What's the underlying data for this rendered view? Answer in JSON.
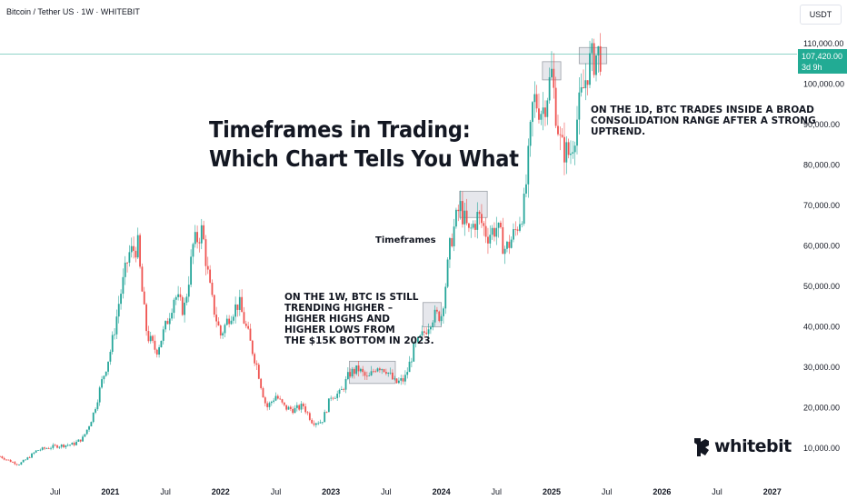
{
  "header": {
    "symbol": "Bitcoin / Tether US · 1W · WHITEBIT",
    "currency": "USDT"
  },
  "headline": {
    "line1": "Timeframes in Trading:",
    "line2": "Which Chart Tells You What"
  },
  "annotations": {
    "weekly": "ON THE 1W, BTC IS STILL\nTRENDING HIGHER –\nHIGHER HIGHS AND\nHIGHER LOWS FROM\nTHE $15K BOTTOM IN 2023.",
    "daily": "ON THE 1D, BTC TRADES INSIDE A BROAD\nCONSOLIDATION RANGE AFTER A STRONG\nUPTREND.",
    "timeframes_label": "Timeframes"
  },
  "price_tag": {
    "price": "107,420.00",
    "countdown": "3d 9h"
  },
  "logo": {
    "name": "whitebit",
    "icon": "whitebit-logo-icon"
  },
  "colors": {
    "up": "#26a69a",
    "down": "#ef5350",
    "price_line": "#22ab94",
    "box_fill": "#d1d4dc",
    "box_stroke": "#9ba0a8",
    "text": "#131722"
  },
  "chart_data": {
    "type": "candlestick",
    "y_scale": "linear",
    "ylim": [
      3500,
      114000
    ],
    "ytick_labels": [
      "110,000.00",
      "100,000.00",
      "90,000.00",
      "80,000.00",
      "70,000.00",
      "60,000.00",
      "50,000.00",
      "40,000.00",
      "30,000.00",
      "20,000.00",
      "10,000.00"
    ],
    "ytick_values": [
      110000,
      100000,
      90000,
      80000,
      70000,
      60000,
      50000,
      40000,
      30000,
      20000,
      10000
    ],
    "xtick_labels": [
      {
        "label": "Jul",
        "date": "2020-07",
        "bold": false
      },
      {
        "label": "2021",
        "date": "2021-01",
        "bold": true
      },
      {
        "label": "Jul",
        "date": "2021-07",
        "bold": false
      },
      {
        "label": "2022",
        "date": "2022-01",
        "bold": true
      },
      {
        "label": "Jul",
        "date": "2022-07",
        "bold": false
      },
      {
        "label": "2023",
        "date": "2023-01",
        "bold": true
      },
      {
        "label": "Jul",
        "date": "2023-07",
        "bold": false
      },
      {
        "label": "2024",
        "date": "2024-01",
        "bold": true
      },
      {
        "label": "Jul",
        "date": "2024-07",
        "bold": false
      },
      {
        "label": "2025",
        "date": "2025-01",
        "bold": true
      },
      {
        "label": "Jul",
        "date": "2025-07",
        "bold": false
      },
      {
        "label": "2026",
        "date": "2026-01",
        "bold": true
      },
      {
        "label": "Jul",
        "date": "2026-07",
        "bold": false
      },
      {
        "label": "2027",
        "date": "2027-01",
        "bold": true
      }
    ],
    "x_start": "2020-01",
    "x_end": "2027-03",
    "last_price": 107420,
    "price_path": [
      [
        "2020-01",
        8000
      ],
      [
        "2020-03",
        6000
      ],
      [
        "2020-05",
        9500
      ],
      [
        "2020-07",
        10500
      ],
      [
        "2020-09",
        11000
      ],
      [
        "2020-10",
        12500
      ],
      [
        "2020-11",
        17500
      ],
      [
        "2020-12",
        26000
      ],
      [
        "2021-01",
        34000
      ],
      [
        "2021-02",
        47000
      ],
      [
        "2021-03",
        58000
      ],
      [
        "2021-04",
        60000
      ],
      [
        "2021-05",
        38000
      ],
      [
        "2021-06",
        34000
      ],
      [
        "2021-07",
        40000
      ],
      [
        "2021-08",
        48000
      ],
      [
        "2021-09",
        44000
      ],
      [
        "2021-10",
        60000
      ],
      [
        "2021-11",
        64000
      ],
      [
        "2021-12",
        47000
      ],
      [
        "2022-01",
        38000
      ],
      [
        "2022-02",
        43000
      ],
      [
        "2022-03",
        46000
      ],
      [
        "2022-04",
        38000
      ],
      [
        "2022-05",
        30000
      ],
      [
        "2022-06",
        20000
      ],
      [
        "2022-07",
        23000
      ],
      [
        "2022-08",
        20000
      ],
      [
        "2022-09",
        19500
      ],
      [
        "2022-10",
        20500
      ],
      [
        "2022-11",
        16500
      ],
      [
        "2022-12",
        16600
      ],
      [
        "2023-01",
        23000
      ],
      [
        "2023-02",
        23500
      ],
      [
        "2023-03",
        28500
      ],
      [
        "2023-04",
        29500
      ],
      [
        "2023-05",
        27000
      ],
      [
        "2023-06",
        30500
      ],
      [
        "2023-07",
        29500
      ],
      [
        "2023-08",
        26000
      ],
      [
        "2023-09",
        27000
      ],
      [
        "2023-10",
        34500
      ],
      [
        "2023-11",
        38000
      ],
      [
        "2023-12",
        42500
      ],
      [
        "2024-01",
        43000
      ],
      [
        "2024-02",
        61000
      ],
      [
        "2024-03",
        70000
      ],
      [
        "2024-04",
        63000
      ],
      [
        "2024-05",
        67500
      ],
      [
        "2024-06",
        62700
      ],
      [
        "2024-07",
        64600
      ],
      [
        "2024-08",
        59000
      ],
      [
        "2024-09",
        63300
      ],
      [
        "2024-10",
        70000
      ],
      [
        "2024-11",
        96400
      ],
      [
        "2024-12",
        93400
      ],
      [
        "2025-01",
        102400
      ],
      [
        "2025-02",
        84300
      ],
      [
        "2025-03",
        82500
      ],
      [
        "2025-04",
        94200
      ],
      [
        "2025-05",
        104600
      ],
      [
        "2025-06",
        107400
      ]
    ],
    "consolidation_boxes": [
      {
        "x0": "2023-03",
        "x1": "2023-08",
        "y0": 26000,
        "y1": 31500
      },
      {
        "x0": "2023-11",
        "x1": "2024-01",
        "y0": 40000,
        "y1": 46000
      },
      {
        "x0": "2024-03",
        "x1": "2024-06",
        "y0": 67000,
        "y1": 73500
      },
      {
        "x0": "2024-12",
        "x1": "2025-02",
        "y0": 101000,
        "y1": 105500
      },
      {
        "x0": "2025-04",
        "x1": "2025-07",
        "y0": 105000,
        "y1": 109000
      }
    ]
  }
}
